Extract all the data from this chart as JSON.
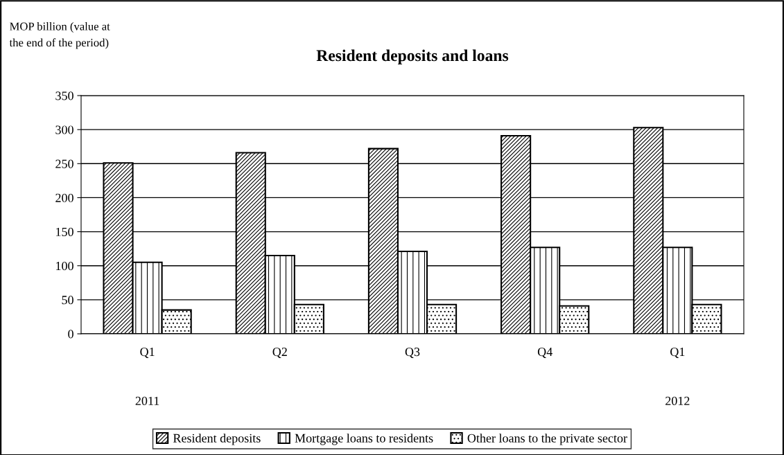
{
  "chart_data": {
    "type": "bar",
    "title": "Resident deposits and loans",
    "ylabel": "MOP billion (value at\nthe end of the period)",
    "categories": [
      "Q1",
      "Q2",
      "Q3",
      "Q4",
      "Q1"
    ],
    "series": [
      {
        "name": "Resident deposits",
        "color": "#000000",
        "values": [
          251,
          266,
          272,
          291,
          303
        ]
      },
      {
        "name": "Mortgage loans to residents",
        "color": "#000000",
        "values": [
          105,
          115,
          121,
          127,
          127
        ]
      },
      {
        "name": "Other loans to the private sector",
        "color": "#000000",
        "values": [
          35,
          43,
          43,
          41,
          43
        ]
      }
    ],
    "annotations": [
      "2011",
      "2012"
    ],
    "ylim": [
      0,
      350
    ],
    "yticks": [
      0,
      50,
      100,
      150,
      200,
      250,
      300,
      350
    ],
    "grid": "y",
    "legend": "bottom"
  }
}
